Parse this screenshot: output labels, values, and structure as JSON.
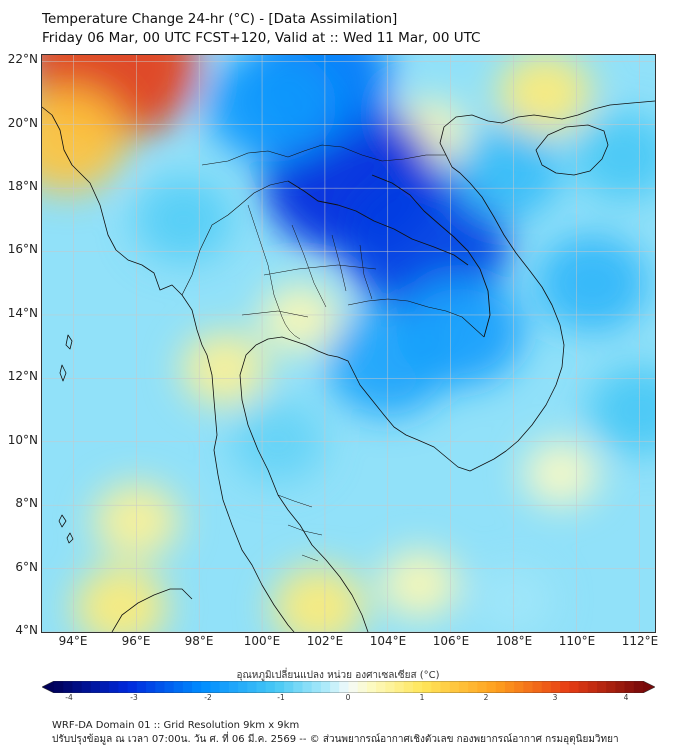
{
  "title": {
    "line1": "Temperature Change 24-hr (°C) - [Data Assimilation]",
    "line2": "Friday 06 Mar, 00 UTC FCST+120, Valid at :: Wed 11 Mar, 00 UTC"
  },
  "axes": {
    "lat_labels": [
      "22°N",
      "20°N",
      "18°N",
      "16°N",
      "14°N",
      "12°N",
      "10°N",
      "8°N",
      "6°N",
      "4°N"
    ],
    "lat_values": [
      22,
      20,
      18,
      16,
      14,
      12,
      10,
      8,
      6,
      4
    ],
    "lon_labels": [
      "94°E",
      "96°E",
      "98°E",
      "100°E",
      "102°E",
      "104°E",
      "106°E",
      "108°E",
      "110°E",
      "112°E"
    ],
    "lon_values": [
      94,
      96,
      98,
      100,
      102,
      104,
      106,
      108,
      110,
      112
    ],
    "lon_range": [
      93,
      112.5
    ],
    "lat_range": [
      4,
      22.2
    ]
  },
  "colorbar": {
    "title": "อุณหภูมิเปลี่ยนแปลง หน่วย องศาเซลเซียส (°C)",
    "tick_labels": [
      "-4",
      "-3",
      "-2",
      "-1",
      "0",
      "1",
      "2",
      "3",
      "4"
    ],
    "tick_values": [
      -4,
      -3,
      -2,
      -1,
      0,
      1,
      2,
      3,
      4
    ],
    "range": [
      -4,
      4
    ]
  },
  "field": {
    "hotspots": [
      {
        "lon": 95.2,
        "lat": 21.9,
        "value": 3.0
      },
      {
        "lon": 93.8,
        "lat": 19.5,
        "value": 1.5
      },
      {
        "lon": 109.0,
        "lat": 21.0,
        "value": 0.8
      },
      {
        "lon": 105.3,
        "lat": 19.7,
        "value": 0.4
      },
      {
        "lon": 98.8,
        "lat": 12.3,
        "value": 0.6
      },
      {
        "lon": 101.2,
        "lat": 13.9,
        "value": 0.4
      },
      {
        "lon": 96.0,
        "lat": 7.5,
        "value": 0.6
      },
      {
        "lon": 101.8,
        "lat": 4.8,
        "value": 0.8
      },
      {
        "lon": 95.5,
        "lat": 4.8,
        "value": 0.8
      },
      {
        "lon": 105.0,
        "lat": 5.5,
        "value": 0.4
      },
      {
        "lon": 109.5,
        "lat": 9.0,
        "value": 0.3
      },
      {
        "lon": 102.8,
        "lat": 18.3,
        "value": -3.0
      },
      {
        "lon": 105.2,
        "lat": 16.3,
        "value": -2.8
      },
      {
        "lon": 101.8,
        "lat": 21.5,
        "value": -2.2
      },
      {
        "lon": 100.3,
        "lat": 20.6,
        "value": -1.8
      },
      {
        "lon": 104.0,
        "lat": 12.5,
        "value": -1.6
      },
      {
        "lon": 106.3,
        "lat": 13.5,
        "value": -1.7
      },
      {
        "lon": 110.5,
        "lat": 15.0,
        "value": -1.3
      },
      {
        "lon": 107.8,
        "lat": 18.5,
        "value": -1.2
      },
      {
        "lon": 111.5,
        "lat": 19.0,
        "value": -1.0
      },
      {
        "lon": 100.5,
        "lat": 10.0,
        "value": -0.8
      },
      {
        "lon": 97.5,
        "lat": 17.0,
        "value": -0.9
      },
      {
        "lon": 112.0,
        "lat": 11.0,
        "value": -1.0
      },
      {
        "lon": 108.0,
        "lat": 5.0,
        "value": -0.4
      }
    ],
    "background_value": -0.5
  },
  "footer": {
    "line1": "WRF-DA Domain 01 :: Grid Resolution 9km x 9km",
    "line2": "ปรับปรุงข้อมูล ณ เวลา 07:00น. วัน ศ. ที่ 06 มี.ค. 2569 -- © ส่วนพยากรณ์อากาศเชิงตัวเลข กองพยากรณ์อากาศ กรมอุตุนิยมวิทยา"
  },
  "colors": {
    "frame": "#333333",
    "coast": "#111111",
    "grid": "#c8c8c8"
  }
}
